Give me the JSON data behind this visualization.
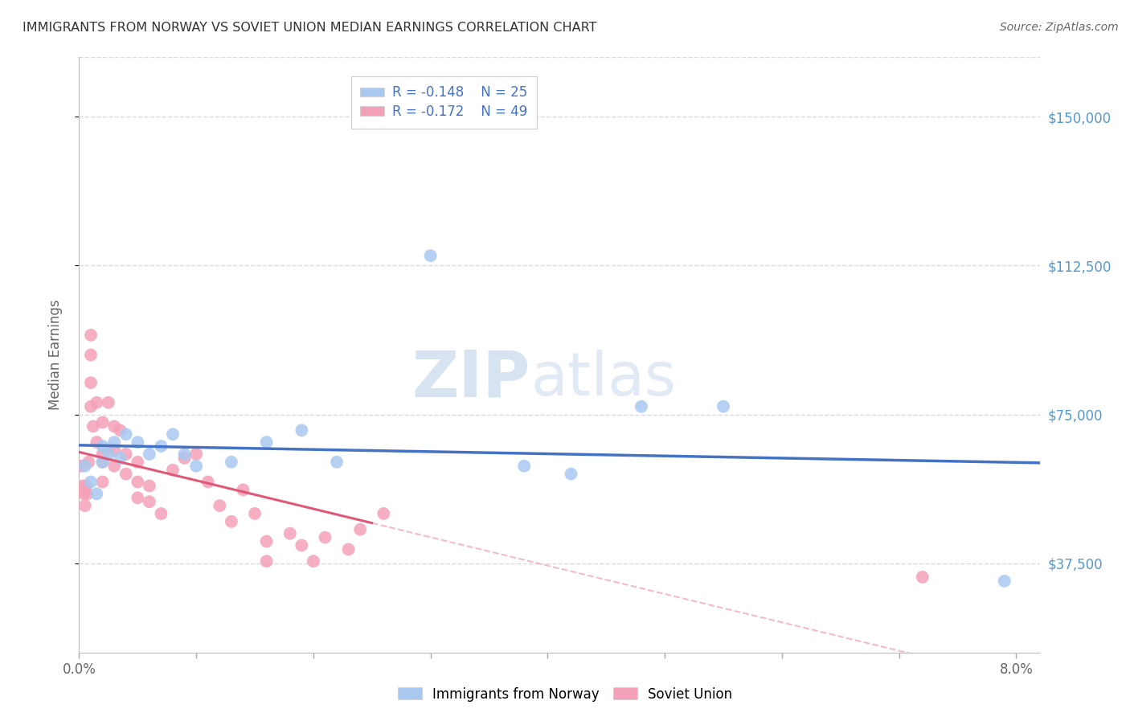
{
  "title": "IMMIGRANTS FROM NORWAY VS SOVIET UNION MEDIAN EARNINGS CORRELATION CHART",
  "source": "Source: ZipAtlas.com",
  "ylabel": "Median Earnings",
  "norway_R": -0.148,
  "norway_N": 25,
  "soviet_R": -0.172,
  "soviet_N": 49,
  "norway_color": "#A8C8F0",
  "soviet_color": "#F4A0B8",
  "norway_line_color": "#4472C4",
  "soviet_line_color": "#E05878",
  "soviet_dash_color": "#F0B0C0",
  "background_color": "#FFFFFF",
  "grid_color": "#D8D8E8",
  "title_color": "#333333",
  "axis_label_color": "#666666",
  "right_axis_color": "#5599CC",
  "legend_text_color": "#4472C4",
  "xlim": [
    0.0,
    0.082
  ],
  "ylim": [
    15000,
    165000
  ],
  "yticks": [
    37500,
    75000,
    112500,
    150000
  ],
  "norway_x": [
    0.0005,
    0.001,
    0.0015,
    0.002,
    0.002,
    0.0025,
    0.003,
    0.0035,
    0.004,
    0.005,
    0.006,
    0.007,
    0.008,
    0.009,
    0.01,
    0.013,
    0.016,
    0.019,
    0.022,
    0.03,
    0.038,
    0.042,
    0.048,
    0.055,
    0.079
  ],
  "norway_y": [
    62000,
    58000,
    55000,
    63000,
    67000,
    65000,
    68000,
    64000,
    70000,
    68000,
    65000,
    67000,
    70000,
    65000,
    62000,
    63000,
    68000,
    71000,
    63000,
    115000,
    62000,
    60000,
    77000,
    77000,
    33000
  ],
  "soviet_x": [
    0.0002,
    0.0003,
    0.0004,
    0.0005,
    0.0006,
    0.0007,
    0.0008,
    0.001,
    0.001,
    0.001,
    0.001,
    0.0012,
    0.0015,
    0.0015,
    0.002,
    0.002,
    0.002,
    0.002,
    0.0025,
    0.003,
    0.003,
    0.003,
    0.0035,
    0.004,
    0.004,
    0.005,
    0.005,
    0.005,
    0.006,
    0.006,
    0.007,
    0.008,
    0.009,
    0.01,
    0.011,
    0.012,
    0.013,
    0.014,
    0.015,
    0.016,
    0.016,
    0.018,
    0.019,
    0.02,
    0.021,
    0.023,
    0.024,
    0.026,
    0.072
  ],
  "soviet_y": [
    62000,
    57000,
    55000,
    52000,
    57000,
    55000,
    63000,
    95000,
    90000,
    83000,
    77000,
    72000,
    78000,
    68000,
    63000,
    58000,
    73000,
    65000,
    78000,
    72000,
    66000,
    62000,
    71000,
    65000,
    60000,
    63000,
    58000,
    54000,
    57000,
    53000,
    50000,
    61000,
    64000,
    65000,
    58000,
    52000,
    48000,
    56000,
    50000,
    43000,
    38000,
    45000,
    42000,
    38000,
    44000,
    41000,
    46000,
    50000,
    34000
  ],
  "norway_legend": "Immigrants from Norway",
  "soviet_legend": "Soviet Union"
}
